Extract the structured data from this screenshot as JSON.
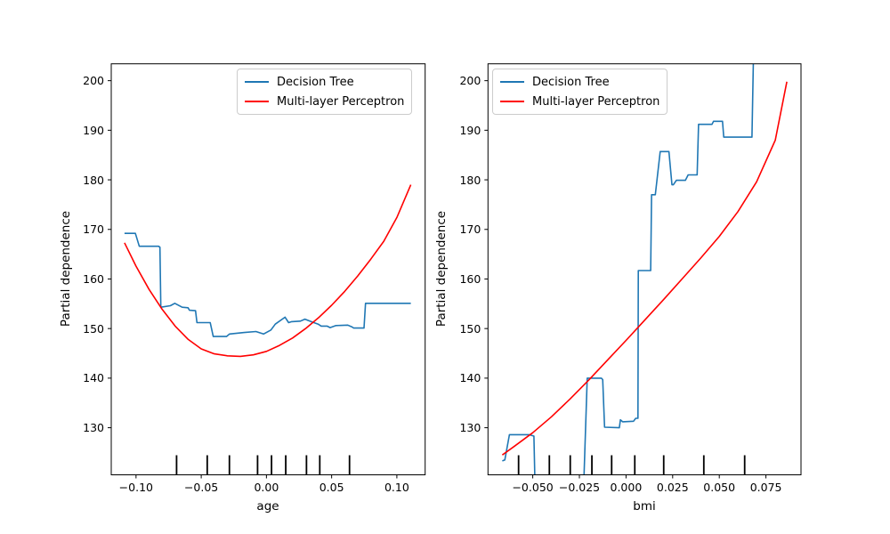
{
  "figure": {
    "background": "#ffffff",
    "text_color": "#000000",
    "spine_color": "#000000"
  },
  "chart_data": [
    {
      "type": "line",
      "xlabel": "age",
      "ylabel": "Partial dependence",
      "xlim": [
        -0.119,
        0.1217
      ],
      "ylim": [
        120.5,
        203.4
      ],
      "grid": false,
      "legend_position": "top-right",
      "xticks": [
        {
          "value": -0.1,
          "label": "−0.10"
        },
        {
          "value": -0.05,
          "label": "−0.05"
        },
        {
          "value": 0.0,
          "label": "0.00"
        },
        {
          "value": 0.05,
          "label": "0.05"
        },
        {
          "value": 0.1,
          "label": "0.10"
        }
      ],
      "yticks": [
        {
          "value": 130,
          "label": "130"
        },
        {
          "value": 140,
          "label": "140"
        },
        {
          "value": 150,
          "label": "150"
        },
        {
          "value": 160,
          "label": "160"
        },
        {
          "value": 170,
          "label": "170"
        },
        {
          "value": 180,
          "label": "180"
        },
        {
          "value": 190,
          "label": "190"
        },
        {
          "value": 200,
          "label": "200"
        }
      ],
      "series": [
        {
          "name": "Decision Tree",
          "color": "#1f77b4",
          "points": [
            [
              -0.1088,
              169.2
            ],
            [
              -0.1005,
              169.2
            ],
            [
              -0.0975,
              166.6
            ],
            [
              -0.0827,
              166.6
            ],
            [
              -0.0817,
              166.4
            ],
            [
              -0.081,
              154.3
            ],
            [
              -0.0737,
              154.6
            ],
            [
              -0.0703,
              155.1
            ],
            [
              -0.0646,
              154.3
            ],
            [
              -0.0601,
              154.2
            ],
            [
              -0.059,
              153.7
            ],
            [
              -0.0544,
              153.6
            ],
            [
              -0.0533,
              151.2
            ],
            [
              -0.0431,
              151.2
            ],
            [
              -0.0408,
              148.4
            ],
            [
              -0.0306,
              148.4
            ],
            [
              -0.0284,
              148.9
            ],
            [
              -0.017,
              149.2
            ],
            [
              -0.008,
              149.4
            ],
            [
              -0.0022,
              148.9
            ],
            [
              0.0034,
              149.7
            ],
            [
              0.0068,
              150.9
            ],
            [
              0.0143,
              152.3
            ],
            [
              0.017,
              151.2
            ],
            [
              0.0193,
              151.4
            ],
            [
              0.026,
              151.5
            ],
            [
              0.0295,
              151.9
            ],
            [
              0.0352,
              151.3
            ],
            [
              0.0397,
              150.9
            ],
            [
              0.042,
              150.5
            ],
            [
              0.0465,
              150.5
            ],
            [
              0.0488,
              150.2
            ],
            [
              0.0533,
              150.6
            ],
            [
              0.0624,
              150.7
            ],
            [
              0.0658,
              150.3
            ],
            [
              0.0669,
              150.1
            ],
            [
              0.0748,
              150.1
            ],
            [
              0.076,
              155.1
            ],
            [
              0.1107,
              155.1
            ]
          ]
        },
        {
          "name": "Multi-layer Perceptron",
          "color": "#ff0000",
          "points": [
            [
              -0.1088,
              167.3
            ],
            [
              -0.1,
              162.6
            ],
            [
              -0.09,
              157.9
            ],
            [
              -0.08,
              153.9
            ],
            [
              -0.07,
              150.5
            ],
            [
              -0.06,
              147.8
            ],
            [
              -0.05,
              145.9
            ],
            [
              -0.04,
              144.9
            ],
            [
              -0.03,
              144.5
            ],
            [
              -0.02,
              144.4
            ],
            [
              -0.01,
              144.7
            ],
            [
              0.0,
              145.4
            ],
            [
              0.01,
              146.6
            ],
            [
              0.02,
              148.1
            ],
            [
              0.03,
              150.0
            ],
            [
              0.04,
              152.2
            ],
            [
              0.05,
              154.7
            ],
            [
              0.06,
              157.5
            ],
            [
              0.07,
              160.6
            ],
            [
              0.08,
              164.0
            ],
            [
              0.09,
              167.6
            ],
            [
              0.1,
              172.4
            ],
            [
              0.1107,
              179.0
            ]
          ]
        }
      ],
      "rug": {
        "color": "#000000",
        "values": [
          -0.0689,
          -0.0454,
          -0.0284,
          -0.0068,
          0.0039,
          0.0148,
          0.0307,
          0.0409,
          0.0637
        ]
      }
    },
    {
      "type": "line",
      "xlabel": "bmi",
      "ylabel": "Partial dependence",
      "xlim": [
        -0.074,
        0.0938
      ],
      "ylim": [
        120.5,
        203.4
      ],
      "grid": false,
      "legend_position": "top-left",
      "xticks": [
        {
          "value": -0.05,
          "label": "−0.050"
        },
        {
          "value": -0.025,
          "label": "−0.025"
        },
        {
          "value": 0.0,
          "label": "0.000"
        },
        {
          "value": 0.025,
          "label": "0.025"
        },
        {
          "value": 0.05,
          "label": "0.050"
        },
        {
          "value": 0.075,
          "label": "0.075"
        }
      ],
      "yticks": [
        {
          "value": 130,
          "label": "130"
        },
        {
          "value": 140,
          "label": "140"
        },
        {
          "value": 150,
          "label": "150"
        },
        {
          "value": 160,
          "label": "160"
        },
        {
          "value": 170,
          "label": "170"
        },
        {
          "value": 180,
          "label": "180"
        },
        {
          "value": 190,
          "label": "190"
        },
        {
          "value": 200,
          "label": "200"
        }
      ],
      "series": [
        {
          "name": "Decision Tree",
          "color": "#1f77b4",
          "points": [
            [
              -0.0663,
              123.3
            ],
            [
              -0.065,
              123.5
            ],
            [
              -0.0625,
              128.6
            ],
            [
              -0.052,
              128.6
            ],
            [
              -0.0494,
              128.3
            ],
            [
              -0.0487,
              117.0
            ],
            [
              -0.0228,
              117.0
            ],
            [
              -0.0208,
              140.0
            ],
            [
              -0.0132,
              140.0
            ],
            [
              -0.0125,
              139.7
            ],
            [
              -0.0115,
              130.1
            ],
            [
              -0.0036,
              130.0
            ],
            [
              -0.003,
              131.6
            ],
            [
              -0.0018,
              131.2
            ],
            [
              0.004,
              131.3
            ],
            [
              0.0052,
              131.9
            ],
            [
              0.0064,
              131.9
            ],
            [
              0.0066,
              161.7
            ],
            [
              0.0132,
              161.7
            ],
            [
              0.0137,
              177.0
            ],
            [
              0.0157,
              177.0
            ],
            [
              0.0183,
              185.7
            ],
            [
              0.023,
              185.7
            ],
            [
              0.0246,
              179.0
            ],
            [
              0.0254,
              179.0
            ],
            [
              0.027,
              179.9
            ],
            [
              0.0318,
              179.9
            ],
            [
              0.0333,
              181.0
            ],
            [
              0.0381,
              181.0
            ],
            [
              0.0389,
              191.2
            ],
            [
              0.0461,
              191.2
            ],
            [
              0.0469,
              191.8
            ],
            [
              0.0517,
              191.8
            ],
            [
              0.0524,
              188.6
            ],
            [
              0.0675,
              188.6
            ],
            [
              0.0684,
              207.0
            ]
          ]
        },
        {
          "name": "Multi-layer Perceptron",
          "color": "#ff0000",
          "points": [
            [
              -0.0663,
              124.5
            ],
            [
              -0.06,
              126.2
            ],
            [
              -0.05,
              129.0
            ],
            [
              -0.04,
              132.2
            ],
            [
              -0.03,
              135.8
            ],
            [
              -0.02,
              139.6
            ],
            [
              -0.01,
              143.6
            ],
            [
              0.0,
              147.6
            ],
            [
              0.01,
              151.7
            ],
            [
              0.02,
              155.8
            ],
            [
              0.03,
              160.0
            ],
            [
              0.04,
              164.2
            ],
            [
              0.05,
              168.6
            ],
            [
              0.06,
              173.6
            ],
            [
              0.07,
              179.6
            ],
            [
              0.08,
              188.0
            ],
            [
              0.0862,
              199.8
            ]
          ]
        }
      ],
      "rug": {
        "color": "#000000",
        "values": [
          -0.0576,
          -0.0411,
          -0.0299,
          -0.0183,
          -0.0077,
          0.0047,
          0.0202,
          0.0417,
          0.0636
        ]
      }
    }
  ],
  "legend": {
    "entries": [
      "Decision Tree",
      "Multi-layer Perceptron"
    ]
  }
}
